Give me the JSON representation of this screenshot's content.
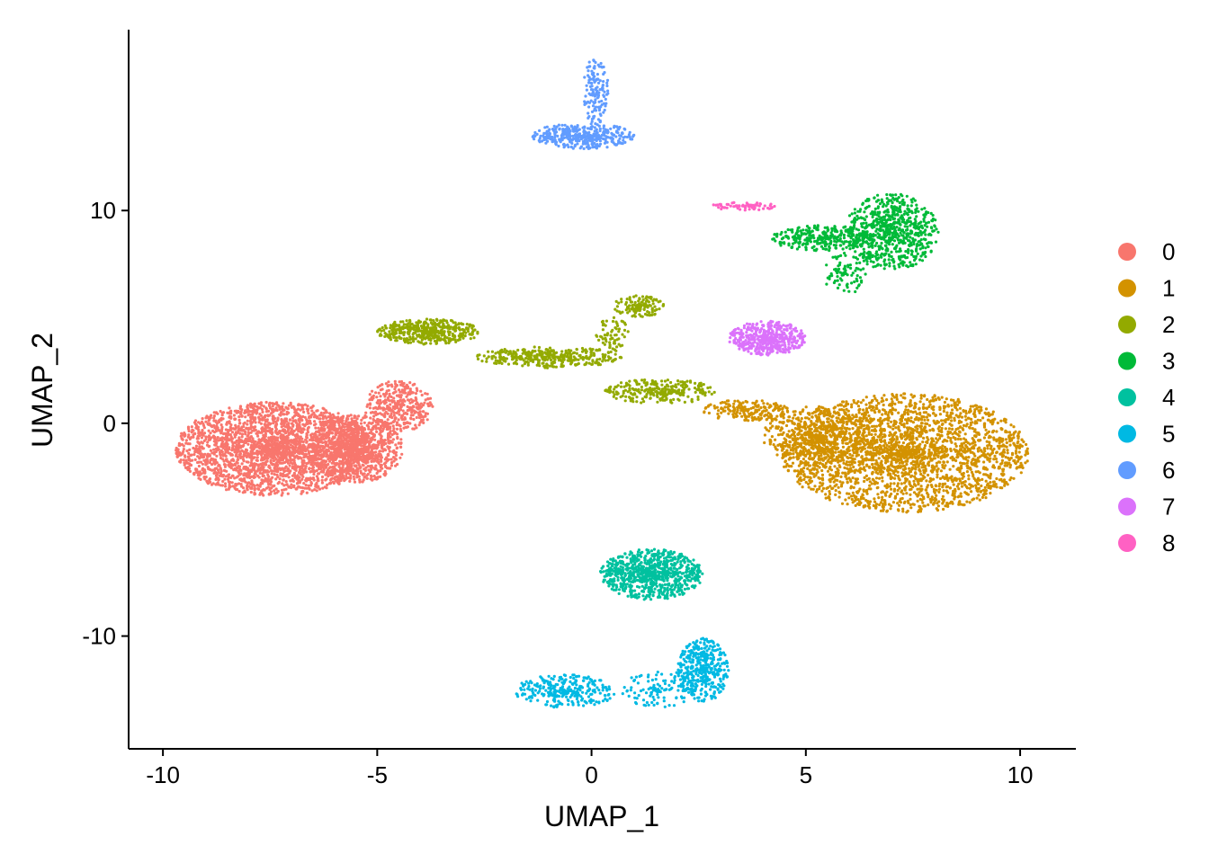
{
  "chart_data": {
    "type": "scatter",
    "xlabel": "UMAP_1",
    "ylabel": "UMAP_2",
    "xlim": [
      -10.8,
      11.3
    ],
    "ylim": [
      -15.3,
      18.5
    ],
    "xticks": [
      -10,
      -5,
      0,
      5,
      10
    ],
    "xtick_labels": [
      "-10",
      "-5",
      "0",
      "5",
      "10"
    ],
    "yticks": [
      -10,
      0,
      10
    ],
    "ytick_labels": [
      "-10",
      "0",
      "10"
    ],
    "grid": false,
    "legend_position": "right",
    "series": [
      {
        "name": "0",
        "color": "#F8766D",
        "regions": [
          {
            "cx": -7.4,
            "cy": -1.2,
            "rx": 2.3,
            "ry": 2.2,
            "n": 2600
          },
          {
            "cx": -5.5,
            "cy": -1.2,
            "rx": 1.1,
            "ry": 1.6,
            "n": 900
          },
          {
            "cx": -4.5,
            "cy": 0.8,
            "rx": 0.8,
            "ry": 1.2,
            "n": 350
          }
        ]
      },
      {
        "name": "1",
        "color": "#D39200",
        "regions": [
          {
            "cx": 7.3,
            "cy": -1.4,
            "rx": 2.9,
            "ry": 2.8,
            "n": 2600
          },
          {
            "cx": 5.2,
            "cy": -0.6,
            "rx": 1.2,
            "ry": 1.4,
            "n": 500
          },
          {
            "cx": 3.6,
            "cy": 0.6,
            "rx": 1.0,
            "ry": 0.5,
            "n": 180
          }
        ]
      },
      {
        "name": "2",
        "color": "#93AA00",
        "regions": [
          {
            "cx": -3.8,
            "cy": 4.3,
            "rx": 1.2,
            "ry": 0.6,
            "n": 450
          },
          {
            "cx": -1.0,
            "cy": 3.1,
            "rx": 1.7,
            "ry": 0.5,
            "n": 350
          },
          {
            "cx": 1.6,
            "cy": 1.5,
            "rx": 1.3,
            "ry": 0.6,
            "n": 280
          },
          {
            "cx": 1.1,
            "cy": 5.5,
            "rx": 0.6,
            "ry": 0.5,
            "n": 120
          },
          {
            "cx": 0.5,
            "cy": 4.0,
            "rx": 0.4,
            "ry": 1.0,
            "n": 70
          }
        ]
      },
      {
        "name": "3",
        "color": "#00BA38",
        "regions": [
          {
            "cx": 7.0,
            "cy": 9.0,
            "rx": 1.1,
            "ry": 1.8,
            "n": 700
          },
          {
            "cx": 5.4,
            "cy": 8.7,
            "rx": 1.2,
            "ry": 0.6,
            "n": 300
          },
          {
            "cx": 5.9,
            "cy": 7.0,
            "rx": 0.5,
            "ry": 1.0,
            "n": 80
          }
        ]
      },
      {
        "name": "4",
        "color": "#00C19F",
        "regions": [
          {
            "cx": 1.4,
            "cy": -7.1,
            "rx": 1.2,
            "ry": 1.2,
            "n": 800
          }
        ]
      },
      {
        "name": "5",
        "color": "#00B9E3",
        "regions": [
          {
            "cx": 2.6,
            "cy": -11.6,
            "rx": 0.6,
            "ry": 1.5,
            "n": 400
          },
          {
            "cx": -0.6,
            "cy": -12.6,
            "rx": 1.2,
            "ry": 0.8,
            "n": 280
          },
          {
            "cx": 1.6,
            "cy": -12.5,
            "rx": 0.9,
            "ry": 0.9,
            "n": 110
          }
        ]
      },
      {
        "name": "6",
        "color": "#619CFF",
        "regions": [
          {
            "cx": -0.2,
            "cy": 13.5,
            "rx": 1.2,
            "ry": 0.6,
            "n": 380
          },
          {
            "cx": 0.1,
            "cy": 15.6,
            "rx": 0.3,
            "ry": 1.6,
            "n": 140
          }
        ]
      },
      {
        "name": "7",
        "color": "#DB72FB",
        "regions": [
          {
            "cx": 4.1,
            "cy": 4.0,
            "rx": 0.9,
            "ry": 0.8,
            "n": 480
          }
        ]
      },
      {
        "name": "8",
        "color": "#FF61C3",
        "regions": [
          {
            "cx": 3.5,
            "cy": 10.2,
            "rx": 0.8,
            "ry": 0.2,
            "n": 70
          }
        ]
      }
    ]
  }
}
